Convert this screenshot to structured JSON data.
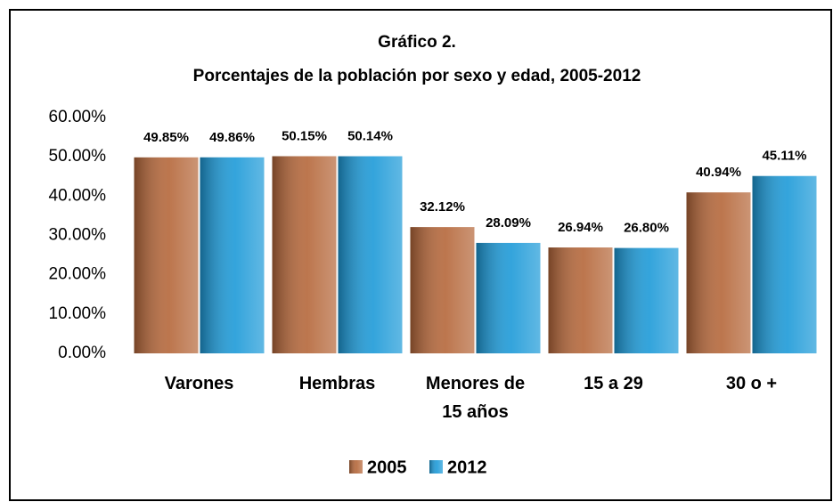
{
  "chart_data": {
    "type": "bar",
    "title": [
      "Gráfico 2.",
      "Porcentajes de la población por sexo y edad, 2005-2012"
    ],
    "categories": [
      "Varones",
      "Hembras",
      "Menores de 15 años",
      "15 a 29",
      "30 o +"
    ],
    "series": [
      {
        "name": "2005",
        "color": "#b5673a",
        "values": [
          49.85,
          50.15,
          32.12,
          26.94,
          40.94
        ],
        "value_labels": [
          "49.85%",
          "50.15%",
          "32.12%",
          "26.94%",
          "40.94%"
        ]
      },
      {
        "name": "2012",
        "color": "#1d9ad8",
        "values": [
          49.86,
          50.14,
          28.09,
          26.8,
          45.11
        ],
        "value_labels": [
          "49.86%",
          "50.14%",
          "28.09%",
          "26.80%",
          "45.11%"
        ]
      }
    ],
    "ylim": [
      0,
      60
    ],
    "yticks": [
      {
        "value": 0,
        "label": "0.00%"
      },
      {
        "value": 10,
        "label": "10.00%"
      },
      {
        "value": 20,
        "label": "20.00%"
      },
      {
        "value": 30,
        "label": "30.00%"
      },
      {
        "value": 40,
        "label": "40.00%"
      },
      {
        "value": 50,
        "label": "50.00%"
      },
      {
        "value": 60,
        "label": "60.00%"
      }
    ],
    "grid": false,
    "legend": "bottom"
  }
}
